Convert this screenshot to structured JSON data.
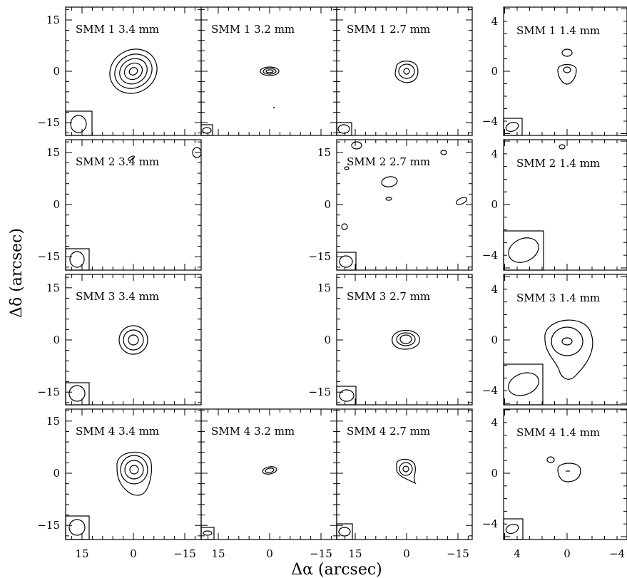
{
  "figure": {
    "xlabel": "Δα (arcsec)",
    "ylabel": "Δδ (arcsec)"
  },
  "columns": [
    {
      "band": "3.4 mm",
      "xticks": [
        "15",
        "0",
        "−15"
      ],
      "yticks": [
        "15",
        "0",
        "−15"
      ]
    },
    {
      "band": "3.2 mm",
      "xticks": [
        "15",
        "0",
        "−15"
      ],
      "yticks": [
        "15",
        "0",
        "−15"
      ]
    },
    {
      "band": "2.7 mm",
      "xticks": [
        "15",
        "0",
        "−15"
      ],
      "yticks": [
        "15",
        "0",
        "−15"
      ]
    },
    {
      "band": "1.4 mm",
      "xticks": [
        "4",
        "0",
        "−4"
      ],
      "yticks": [
        "4",
        "0",
        "−4"
      ]
    }
  ],
  "panel_labels": [
    [
      "SMM 1   3.4 mm",
      "SMM 1   3.2 mm",
      "SMM 1   2.7 mm",
      "SMM 1  1.4 mm"
    ],
    [
      "SMM 2  3.4 mm",
      "",
      "SMM 2   2.7 mm",
      "SMM 2  1.4 mm"
    ],
    [
      "SMM 3   3.4 mm",
      "",
      "SMM 3   2.7 mm",
      "SMM 3  1.4 mm"
    ],
    [
      "SMM 4   3.4 mm",
      "SMM 4   3.2 mm",
      "SMM 4   2.7 mm",
      "SMM 4  1.4 mm"
    ]
  ]
}
